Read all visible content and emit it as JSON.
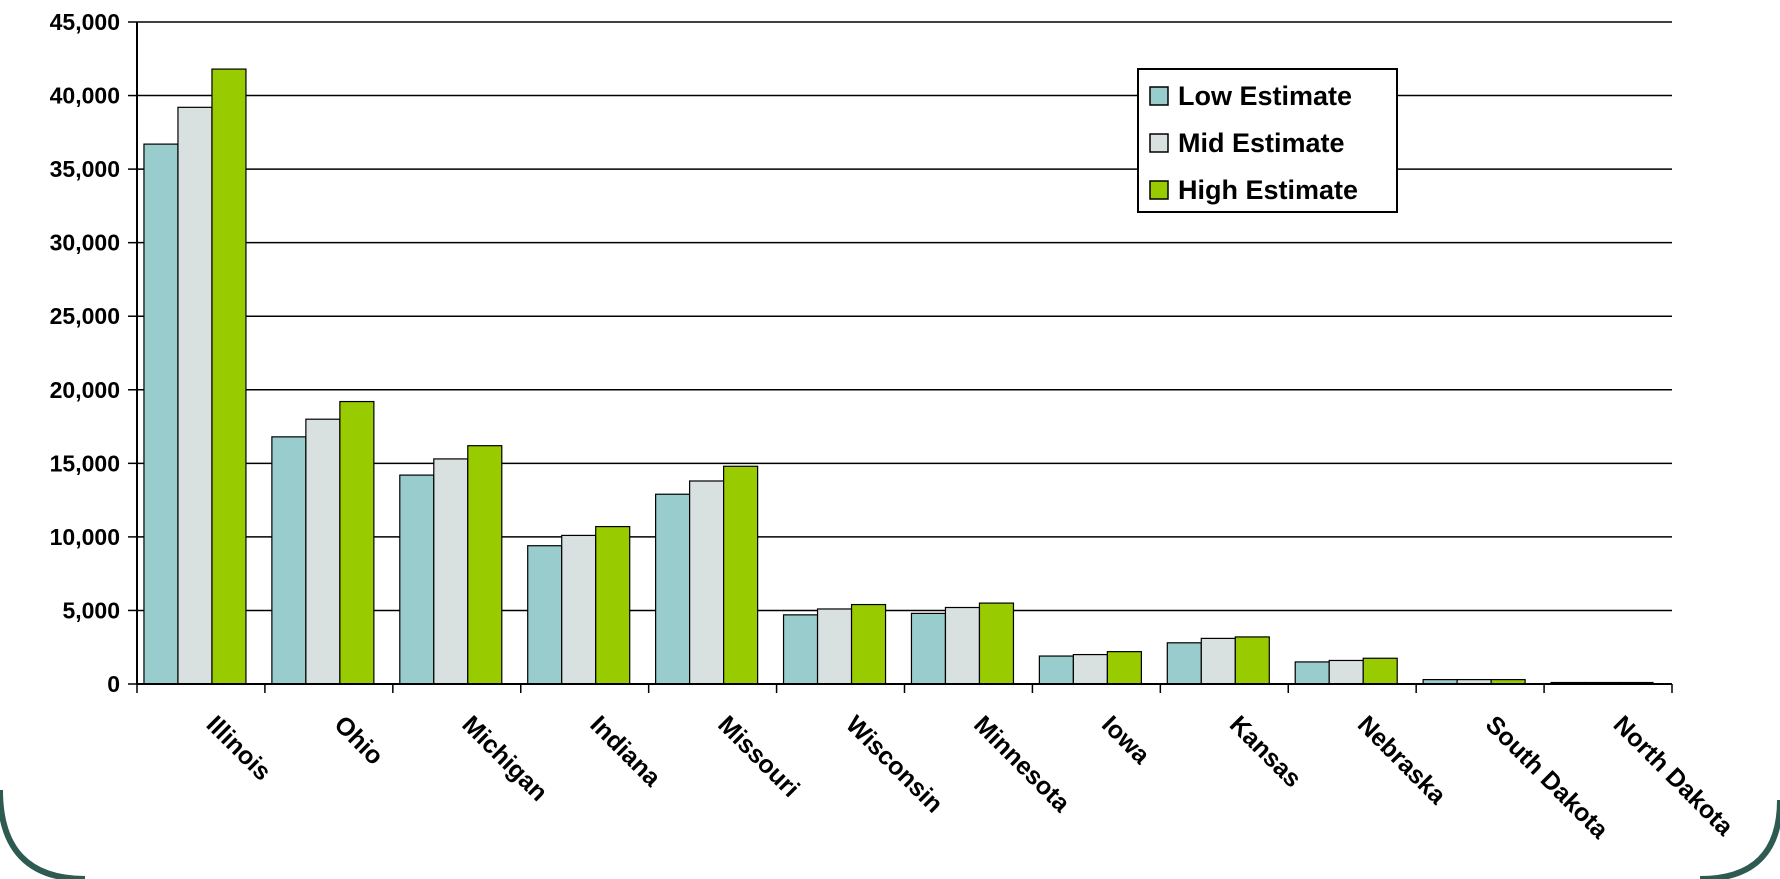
{
  "chart_data": {
    "type": "bar",
    "title": "",
    "xlabel": "",
    "ylabel": "",
    "ylim": [
      0,
      45000
    ],
    "yticks": [
      "0",
      "5,000",
      "10,000",
      "15,000",
      "20,000",
      "25,000",
      "30,000",
      "35,000",
      "40,000",
      "45,000"
    ],
    "grid": true,
    "legend_position": "top-right",
    "categories": [
      "Illinois",
      "Ohio",
      "Michigan",
      "Indiana",
      "Missouri",
      "Wisconsin",
      "Minnesota",
      "Iowa",
      "Kansas",
      "Nebraska",
      "South Dakota",
      "North Dakota"
    ],
    "series": [
      {
        "name": "Low Estimate",
        "color": "#99cccc",
        "values": [
          36700,
          16800,
          14200,
          9400,
          12900,
          4700,
          4800,
          1900,
          2800,
          1500,
          300,
          100
        ]
      },
      {
        "name": "Mid Estimate",
        "color": "#d9e0e0",
        "values": [
          39200,
          18000,
          15300,
          10100,
          13800,
          5100,
          5200,
          2000,
          3100,
          1600,
          300,
          100
        ]
      },
      {
        "name": "High Estimate",
        "color": "#99cc00",
        "values": [
          41800,
          19200,
          16200,
          10700,
          14800,
          5400,
          5500,
          2200,
          3200,
          1750,
          300,
          100
        ]
      }
    ]
  }
}
